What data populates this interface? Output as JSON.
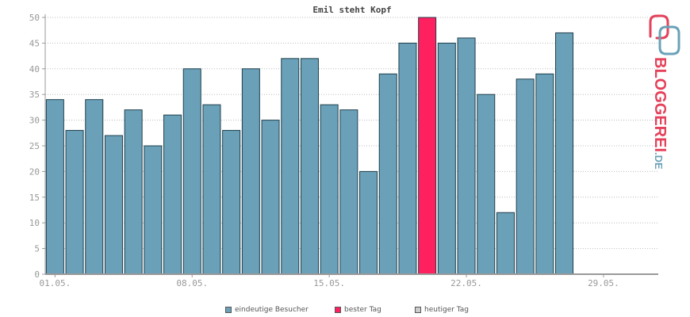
{
  "chart_data": {
    "type": "bar",
    "title": "Emil steht Kopf",
    "xlabel": "",
    "ylabel": "",
    "ylim": [
      0,
      50
    ],
    "yticks": [
      0,
      5,
      10,
      15,
      20,
      25,
      30,
      35,
      40,
      45,
      50
    ],
    "xtick_labels": [
      "01.05.",
      "08.05.",
      "15.05.",
      "22.05.",
      "29.05."
    ],
    "xtick_positions": [
      1,
      8,
      15,
      22,
      29
    ],
    "day_count": 31,
    "x": [
      1,
      2,
      3,
      4,
      5,
      6,
      7,
      8,
      9,
      10,
      11,
      12,
      13,
      14,
      15,
      16,
      17,
      18,
      19,
      20,
      21,
      22,
      23,
      24,
      25,
      26,
      27
    ],
    "values": [
      34,
      28,
      34,
      27,
      32,
      25,
      31,
      40,
      33,
      28,
      40,
      30,
      42,
      42,
      33,
      32,
      20,
      39,
      45,
      50,
      45,
      46,
      35,
      12,
      38,
      39,
      47
    ],
    "best_day": 20,
    "grid": true,
    "legend_position": "bottom",
    "colors": {
      "bar": "#6aa1b8",
      "best": "#ff2060",
      "today": "#cccccc",
      "bar_stroke": "#1f3f4c",
      "grid": "#bbbbbb",
      "axis": "#999999"
    }
  },
  "legend": {
    "visitors_label": "eindeutige Besucher",
    "best_label": "bester Tag",
    "today_label": "heutiger Tag"
  },
  "logo": {
    "text": "BLOGGEREI",
    "suffix": ".DE",
    "text_color": "#e4415a",
    "suffix_color": "#6aa1b8"
  }
}
